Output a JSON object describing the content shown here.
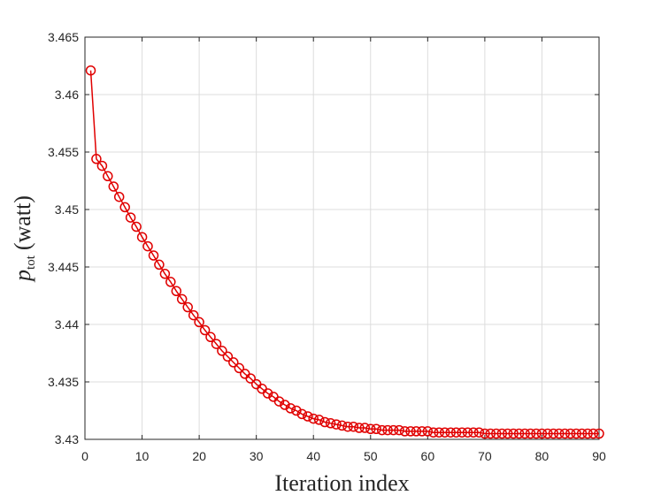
{
  "chart_data": {
    "type": "line",
    "xlabel": "Iteration index",
    "ylabel": {
      "symbol": "p",
      "subscript": "tot",
      "unit": "(watt)"
    },
    "xlim": [
      0,
      90
    ],
    "ylim": [
      3.43,
      3.465
    ],
    "xticks": [
      "0",
      "10",
      "20",
      "30",
      "40",
      "50",
      "60",
      "70",
      "80",
      "90"
    ],
    "yticks": [
      "3.43",
      "3.435",
      "3.44",
      "3.445",
      "3.45",
      "3.455",
      "3.46",
      "3.465"
    ],
    "grid": true,
    "series": [
      {
        "color": "#e00000",
        "marker": "circle-open",
        "x": [
          1,
          2,
          3,
          4,
          5,
          6,
          7,
          8,
          9,
          10,
          11,
          12,
          13,
          14,
          15,
          16,
          17,
          18,
          19,
          20,
          21,
          22,
          23,
          24,
          25,
          26,
          27,
          28,
          29,
          30,
          31,
          32,
          33,
          34,
          35,
          36,
          37,
          38,
          39,
          40,
          41,
          42,
          43,
          44,
          45,
          46,
          47,
          48,
          49,
          50,
          51,
          52,
          53,
          54,
          55,
          56,
          57,
          58,
          59,
          60,
          61,
          62,
          63,
          64,
          65,
          66,
          67,
          68,
          69,
          70,
          71,
          72,
          73,
          74,
          75,
          76,
          77,
          78,
          79,
          80,
          81,
          82,
          83,
          84,
          85,
          86,
          87,
          88,
          89,
          90
        ],
        "y": [
          3.4621,
          3.4544,
          3.4538,
          3.4529,
          3.452,
          3.4511,
          3.4502,
          3.4493,
          3.4485,
          3.4476,
          3.4468,
          3.446,
          3.4452,
          3.4444,
          3.4437,
          3.4429,
          3.4422,
          3.4415,
          3.4408,
          3.4402,
          3.4395,
          3.4389,
          3.4383,
          3.4377,
          3.4372,
          3.4367,
          3.4362,
          3.4357,
          3.4353,
          3.4348,
          3.4344,
          3.434,
          3.4337,
          3.4333,
          3.433,
          3.4327,
          3.4325,
          3.4322,
          3.432,
          3.4318,
          3.4317,
          3.4315,
          3.4314,
          3.4313,
          3.4312,
          3.4311,
          3.4311,
          3.431,
          3.431,
          3.4309,
          3.4309,
          3.4308,
          3.4308,
          3.4308,
          3.4308,
          3.4307,
          3.4307,
          3.4307,
          3.4307,
          3.4307,
          3.4306,
          3.4306,
          3.4306,
          3.4306,
          3.4306,
          3.4306,
          3.4306,
          3.4306,
          3.4306,
          3.4305,
          3.4305,
          3.4305,
          3.4305,
          3.4305,
          3.4305,
          3.4305,
          3.4305,
          3.4305,
          3.4305,
          3.4305,
          3.4305,
          3.4305,
          3.4305,
          3.4305,
          3.4305,
          3.4305,
          3.4305,
          3.4305,
          3.4305,
          3.4305
        ]
      }
    ]
  }
}
